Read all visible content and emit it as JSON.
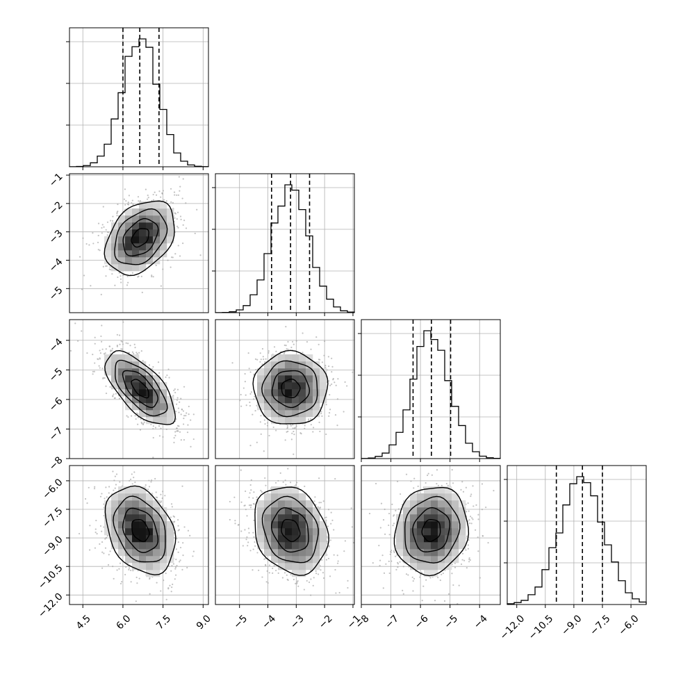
{
  "chart_data": {
    "type": "corner",
    "n_params": 4,
    "grid": true,
    "colors": {
      "line": "#000000",
      "grid": "#b0b0b0",
      "scatter": "#a8a8a8",
      "axis": "#000000"
    },
    "params": [
      {
        "range": [
          4.0,
          9.2
        ],
        "ticks": [
          4.5,
          6.0,
          7.5,
          9.0
        ],
        "tick_labels": [
          "4.5",
          "6.0",
          "7.5",
          "9.0"
        ],
        "median": 6.63,
        "quantiles": [
          6.0,
          7.35
        ],
        "mean": 6.65,
        "sd": 0.65
      },
      {
        "range": [
          -5.85,
          -0.95
        ],
        "ticks": [
          -5,
          -4,
          -3,
          -2,
          -1
        ],
        "tick_labels": [
          "−5",
          "−4",
          "−3",
          "−2",
          "−1"
        ],
        "median": -3.2,
        "quantiles": [
          -3.87,
          -2.53
        ],
        "mean": -3.2,
        "sd": 0.65
      },
      {
        "range": [
          -8.0,
          -3.3
        ],
        "ticks": [
          -8,
          -7,
          -6,
          -5,
          -4
        ],
        "tick_labels": [
          "−8",
          "−7",
          "−6",
          "−5",
          "−4"
        ],
        "median": -5.63,
        "quantiles": [
          -6.25,
          -4.98
        ],
        "mean": -5.63,
        "sd": 0.62
      },
      {
        "range": [
          -12.5,
          -5.2
        ],
        "ticks": [
          -12.0,
          -10.5,
          -9.0,
          -7.5,
          -6.0
        ],
        "tick_labels": [
          "−12.0",
          "−10.5",
          "−9.0",
          "−7.5",
          "−6.0"
        ],
        "median": -8.55,
        "quantiles": [
          -9.92,
          -7.5
        ],
        "mean": -8.6,
        "sd": 1.15
      }
    ],
    "correlations": [
      {
        "row": 1,
        "col": 0,
        "rho": 0.35
      },
      {
        "row": 2,
        "col": 0,
        "rho": -0.65
      },
      {
        "row": 2,
        "col": 1,
        "rho": 0.0
      },
      {
        "row": 3,
        "col": 0,
        "rho": -0.3
      },
      {
        "row": 3,
        "col": 1,
        "rho": -0.2
      },
      {
        "row": 3,
        "col": 2,
        "rho": 0.1
      }
    ],
    "contour_levels_sigma": [
      0.5,
      1.0,
      1.5,
      2.0
    ],
    "histogram_bins": 20
  }
}
